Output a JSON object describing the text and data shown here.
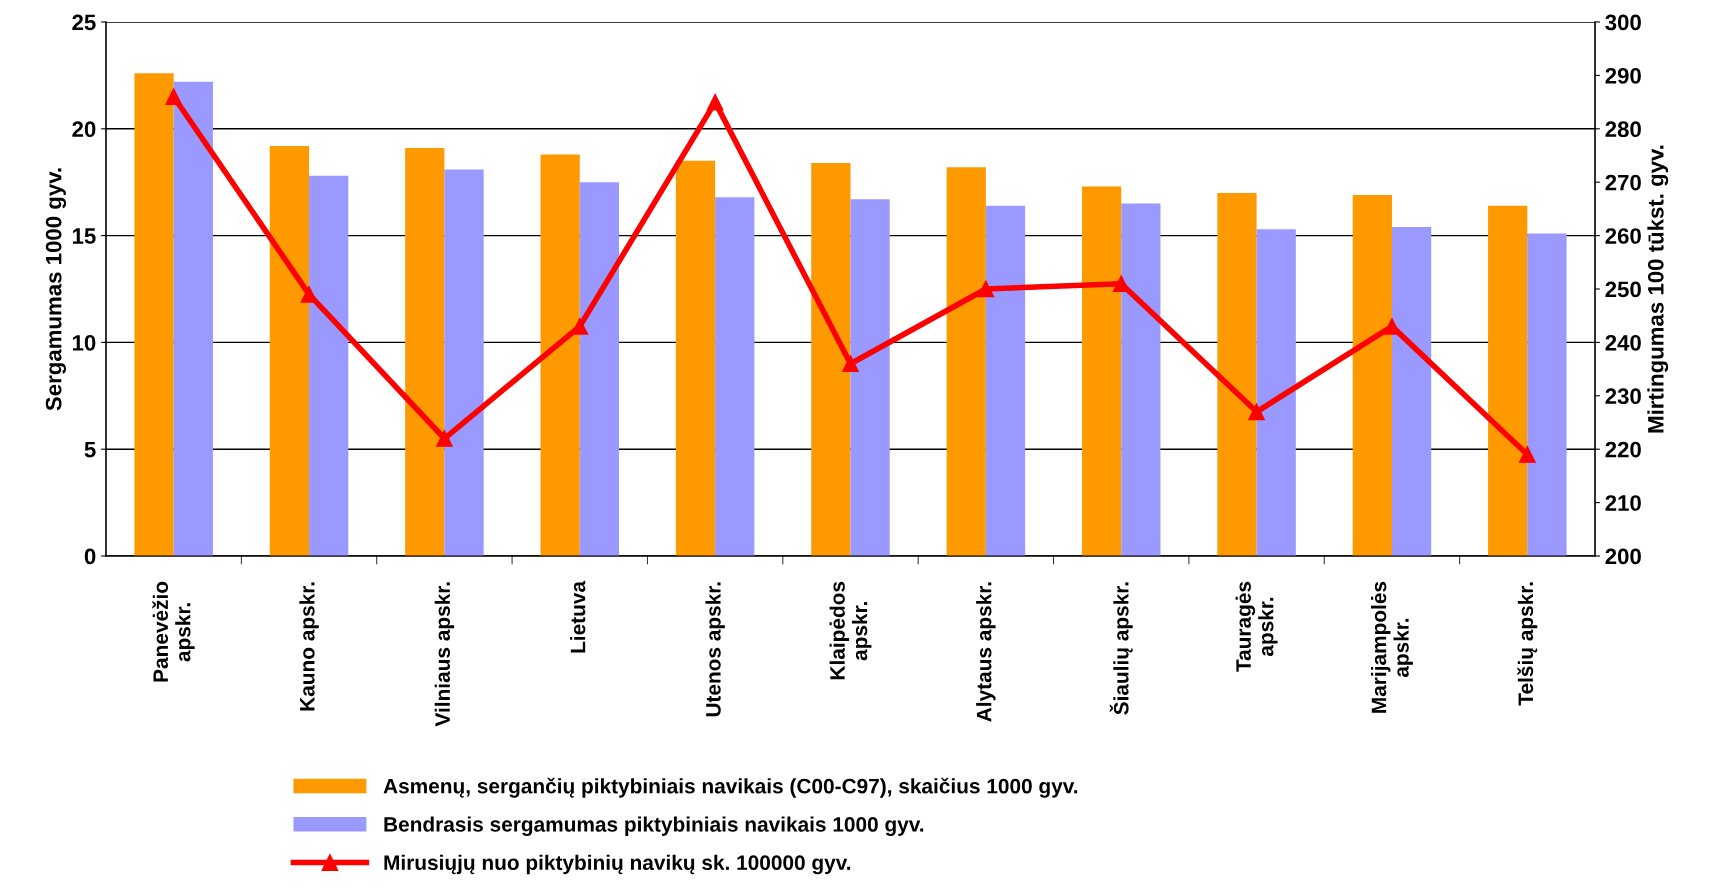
{
  "chart_data": {
    "type": "bar",
    "ylabel": "Sergamumas 1000 gyv.",
    "y2label": "Mirtingumas 100 tūkst. gyv.",
    "categories": [
      "Panevėžio\napskr.",
      "Kauno apskr.",
      "Vilniaus apskr.",
      "Lietuva",
      "Utenos apskr.",
      "Klaipėdos\napskr.",
      "Alytaus apskr.",
      "Šiaulių apskr.",
      "Tauragės\napskr.",
      "Marijampolės\napskr.",
      "Telšių apskr."
    ],
    "series": [
      {
        "name": "Asmenų, sergančių piktybiniais navikais (C00-C97), skaičius 1000 gyv.",
        "color": "#ff9900",
        "values": [
          22.6,
          19.2,
          19.1,
          18.8,
          18.5,
          18.4,
          18.2,
          17.3,
          17.0,
          16.9,
          16.4
        ]
      },
      {
        "name": "Bendrasis sergamumas piktybiniais navikais 1000 gyv.",
        "color": "#9999ff",
        "values": [
          22.2,
          17.8,
          18.1,
          17.5,
          16.8,
          16.7,
          16.4,
          16.5,
          15.3,
          15.4,
          15.1
        ]
      },
      {
        "name": "Mirusiųjų nuo piktybinių navikų sk. 100000 gyv.",
        "type": "line",
        "axis": "y2",
        "color": "#ff0000",
        "marker": "triangle",
        "values": [
          286,
          249,
          222,
          243,
          285,
          236,
          250,
          251,
          227,
          243,
          219
        ]
      }
    ],
    "ylim": [
      0,
      25
    ],
    "yticks": [
      0,
      5,
      10,
      15,
      20,
      25
    ],
    "y2lim": [
      200,
      300
    ],
    "y2ticks": [
      200,
      210,
      220,
      230,
      240,
      250,
      260,
      270,
      280,
      290,
      300
    ],
    "grid": "y",
    "legend": "bottom"
  }
}
